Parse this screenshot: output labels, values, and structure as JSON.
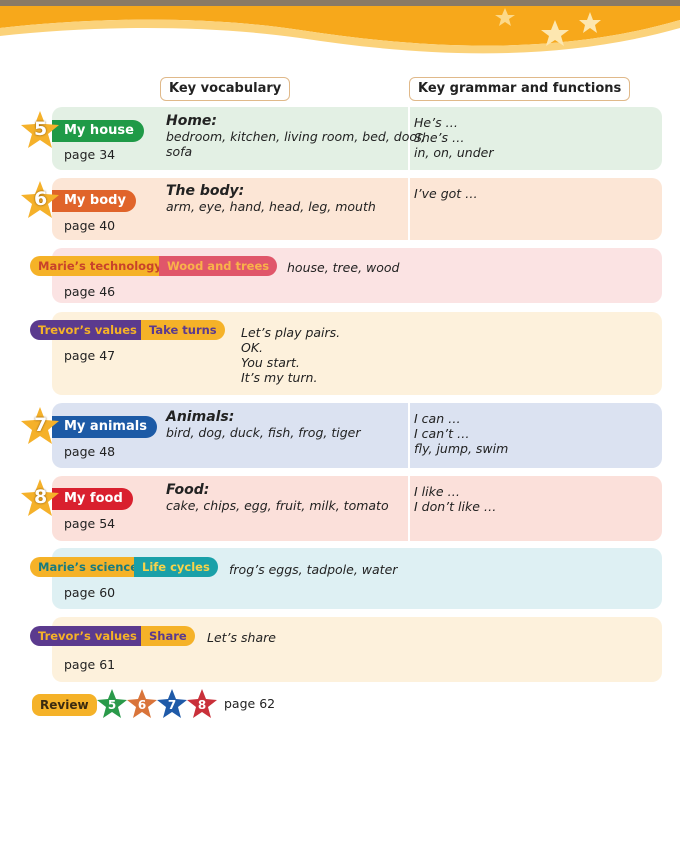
{
  "headers": {
    "vocab": "Key vocabulary",
    "grammar": "Key grammar and functions"
  },
  "units": [
    {
      "number": "5",
      "title": "My house",
      "page": "page 34",
      "topic": "Home:",
      "words": "bedroom, kitchen, living room, bed, door,",
      "words2": "sofa",
      "grammar": [
        "He’s …",
        "She’s …",
        "in, on, under"
      ],
      "color": "#1f9a47",
      "bg": "#e3f0e4"
    },
    {
      "number": "6",
      "title": "My body",
      "page": "page 40",
      "topic": "The body:",
      "words": "arm, eye, hand, head, leg, mouth",
      "grammar": [
        "I’ve got …"
      ],
      "color": "#e0642a",
      "bg": "#fce6d6"
    },
    {
      "number": "7",
      "title": "My animals",
      "page": "page 48",
      "topic": "Animals:",
      "words": "bird, dog, duck, fish, frog, tiger",
      "grammar": [
        "I can …",
        "I can’t …",
        "fly, jump, swim"
      ],
      "color": "#1c5aa6",
      "bg": "#dbe2f1"
    },
    {
      "number": "8",
      "title": "My food",
      "page": "page 54",
      "topic": "Food:",
      "words": "cake, chips, egg, fruit, milk, tomato",
      "grammar": [
        "I like …",
        "I don’t like …"
      ],
      "color": "#d9202e",
      "bg": "#fbe0da"
    }
  ],
  "extras": [
    {
      "label": "Marie’s technology",
      "topic": "Wood and trees",
      "page": "page 46",
      "content": [
        "house, tree, wood"
      ]
    },
    {
      "label": "Trevor’s values",
      "topic": "Take turns",
      "page": "page 47",
      "content": [
        "Let’s play pairs.",
        "OK.",
        "You start.",
        "It’s my turn."
      ]
    },
    {
      "label": "Marie’s science",
      "topic": "Life cycles",
      "page": "page 60",
      "content": [
        "frog’s eggs, tadpole, water"
      ]
    },
    {
      "label": "Trevor’s values",
      "topic": "Share",
      "page": "page 61",
      "content": [
        "Let’s share"
      ]
    }
  ],
  "review": {
    "label": "Review",
    "stars": [
      "5",
      "6",
      "7",
      "8"
    ],
    "page": "page 62"
  },
  "colors": {
    "banner": "#f7a81b",
    "star": "#f5b12a"
  }
}
